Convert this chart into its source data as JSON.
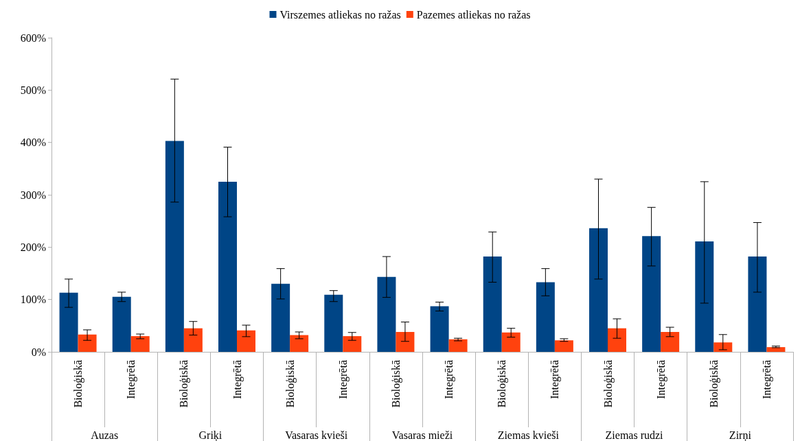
{
  "chart_data": {
    "type": "bar",
    "categories": [
      "Bioloģiskā",
      "Integrētā",
      "Bioloģiskā",
      "Integrētā",
      "Bioloģiskā",
      "Integrētā",
      "Bioloģiskā",
      "Integrētā",
      "Bioloģiskā",
      "Integrētā",
      "Bioloģiskā",
      "Integrētā",
      "Bioloģiskā",
      "Integrētā"
    ],
    "annotations": [
      "Auzas",
      "Griķi",
      "Vasaras kvieši",
      "Vasaras mieži",
      "Ziemas kvieši",
      "Ziemas rudzi",
      "Zirņi"
    ],
    "series": [
      {
        "name": "Virszemes atliekas no ražas",
        "color": "#004586",
        "values": [
          113,
          105,
          403,
          325,
          130,
          109,
          143,
          87,
          182,
          133,
          236,
          221,
          211,
          182
        ],
        "errors": [
          [
            85,
            139
          ],
          [
            96,
            114
          ],
          [
            286,
            521
          ],
          [
            258,
            391
          ],
          [
            101,
            159
          ],
          [
            96,
            117
          ],
          [
            104,
            182
          ],
          [
            78,
            95
          ],
          [
            133,
            229
          ],
          [
            107,
            159
          ],
          [
            139,
            330
          ],
          [
            164,
            276
          ],
          [
            93,
            325
          ],
          [
            114,
            247
          ]
        ]
      },
      {
        "name": "Pazemes atliekas no ražas",
        "color": "#ff420e",
        "values": [
          33,
          30,
          45,
          41,
          32,
          30,
          38,
          24,
          37,
          22,
          45,
          38,
          18,
          9
        ],
        "errors": [
          [
            22,
            42
          ],
          [
            25,
            34
          ],
          [
            32,
            58
          ],
          [
            29,
            51
          ],
          [
            25,
            38
          ],
          [
            22,
            37
          ],
          [
            20,
            57
          ],
          [
            21,
            26
          ],
          [
            28,
            45
          ],
          [
            20,
            25
          ],
          [
            26,
            63
          ],
          [
            29,
            47
          ],
          [
            4,
            33
          ],
          [
            8,
            11
          ]
        ]
      }
    ],
    "ylim": [
      0,
      600
    ],
    "yticks": [
      {
        "value": 0,
        "label": "0%"
      },
      {
        "value": 100,
        "label": "100%"
      },
      {
        "value": 200,
        "label": "200%"
      },
      {
        "value": 300,
        "label": "300%"
      },
      {
        "value": 400,
        "label": "400%"
      },
      {
        "value": 500,
        "label": "500%"
      },
      {
        "value": 600,
        "label": "600%"
      }
    ],
    "legend": "top",
    "grid": false
  }
}
